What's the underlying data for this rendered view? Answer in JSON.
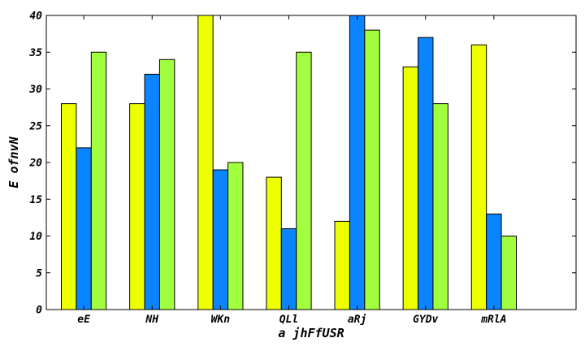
{
  "chart_data": {
    "type": "bar",
    "title": "",
    "xlabel": "a jhFfUSR",
    "ylabel": "E ofnvN",
    "categories": [
      "eE",
      "NH",
      "WKn",
      "QLl",
      "aRj",
      "GYDv",
      "mRlA"
    ],
    "ylim": [
      0,
      40
    ],
    "yticks": [
      0,
      5,
      10,
      15,
      20,
      25,
      30,
      35,
      40
    ],
    "grid": false,
    "series": [
      {
        "color": "#eeff00",
        "values": [
          28,
          28,
          40,
          18,
          12,
          33,
          36
        ]
      },
      {
        "color": "#0a84ff",
        "values": [
          22,
          32,
          19,
          11,
          40,
          37,
          13
        ]
      },
      {
        "color": "#a2ff3f",
        "values": [
          35,
          34,
          20,
          35,
          38,
          28,
          10
        ]
      }
    ]
  }
}
